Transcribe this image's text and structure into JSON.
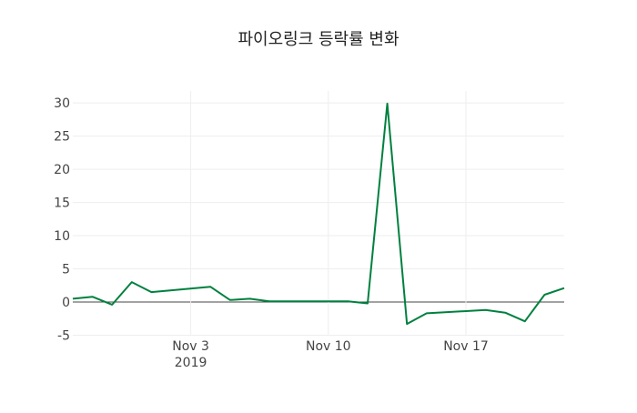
{
  "chart_data": {
    "type": "line",
    "title": "파이오링크 등락률 변화",
    "xlabel": "",
    "ylabel": "",
    "x_range": [
      "2019-10-28",
      "2019-11-22"
    ],
    "ylim": [
      -5,
      31.8
    ],
    "y_ticks": [
      -5,
      0,
      5,
      10,
      15,
      20,
      25,
      30
    ],
    "x_ticks": [
      {
        "date": "2019-11-03",
        "label": "Nov 3",
        "sublabel": "2019"
      },
      {
        "date": "2019-11-10",
        "label": "Nov 10",
        "sublabel": ""
      },
      {
        "date": "2019-11-17",
        "label": "Nov 17",
        "sublabel": ""
      }
    ],
    "grid": true,
    "series": [
      {
        "name": "등락률",
        "color": "#00803f",
        "x": [
          "2019-10-28",
          "2019-10-29",
          "2019-10-30",
          "2019-10-31",
          "2019-11-01",
          "2019-11-04",
          "2019-11-05",
          "2019-11-06",
          "2019-11-07",
          "2019-11-08",
          "2019-11-11",
          "2019-11-12",
          "2019-11-13",
          "2019-11-14",
          "2019-11-15",
          "2019-11-18",
          "2019-11-19",
          "2019-11-20",
          "2019-11-21",
          "2019-11-22"
        ],
        "values": [
          0.5,
          0.8,
          -0.4,
          3.0,
          1.5,
          2.3,
          0.3,
          0.5,
          0.1,
          0.1,
          0.1,
          -0.2,
          29.9,
          -3.3,
          -1.7,
          -1.2,
          -1.6,
          -2.9,
          1.1,
          2.1
        ]
      }
    ]
  }
}
